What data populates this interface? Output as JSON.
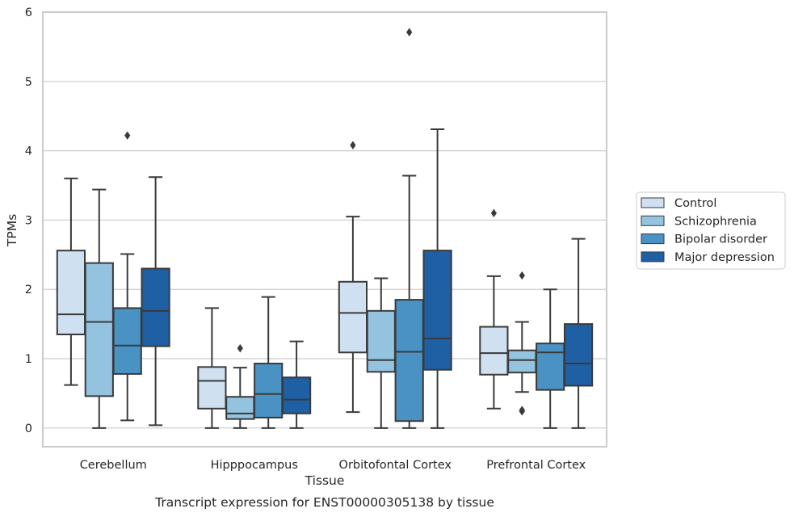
{
  "chart_data": {
    "type": "box",
    "xlabel": "Tissue",
    "ylabel": "TPMs",
    "caption": "Transcript expression for ENST00000305138 by tissue",
    "ylim": [
      -0.27,
      6.0
    ],
    "yticks": [
      0,
      1,
      2,
      3,
      4,
      5,
      6
    ],
    "grid": "horizontal",
    "legend_position": "right",
    "categories": [
      "Cerebellum",
      "Hipppocampus",
      "Orbitofontal Cortex",
      "Prefrontal Cortex"
    ],
    "series": [
      {
        "name": "Control",
        "color": "#cfe0f1",
        "boxes": [
          {
            "whislo": 0.62,
            "q1": 1.35,
            "median": 1.64,
            "q3": 2.56,
            "whishi": 3.6,
            "fliers": []
          },
          {
            "whislo": 0.0,
            "q1": 0.28,
            "median": 0.68,
            "q3": 0.88,
            "whishi": 1.73,
            "fliers": []
          },
          {
            "whislo": 0.23,
            "q1": 1.09,
            "median": 1.66,
            "q3": 2.11,
            "whishi": 3.05,
            "fliers": [
              4.08
            ]
          },
          {
            "whislo": 0.28,
            "q1": 0.77,
            "median": 1.08,
            "q3": 1.46,
            "whishi": 2.19,
            "fliers": [
              3.1
            ]
          }
        ]
      },
      {
        "name": "Schizophrenia",
        "color": "#93c3df",
        "boxes": [
          {
            "whislo": 0.0,
            "q1": 0.46,
            "median": 1.53,
            "q3": 2.38,
            "whishi": 3.44,
            "fliers": []
          },
          {
            "whislo": 0.0,
            "q1": 0.13,
            "median": 0.21,
            "q3": 0.45,
            "whishi": 0.87,
            "fliers": [
              1.15
            ]
          },
          {
            "whislo": 0.0,
            "q1": 0.81,
            "median": 0.98,
            "q3": 1.69,
            "whishi": 2.16,
            "fliers": []
          },
          {
            "whislo": 0.52,
            "q1": 0.8,
            "median": 0.98,
            "q3": 1.12,
            "whishi": 1.53,
            "fliers": [
              0.26,
              0.24,
              2.2
            ]
          }
        ]
      },
      {
        "name": "Bipolar disorder",
        "color": "#4a92c4",
        "boxes": [
          {
            "whislo": 0.11,
            "q1": 0.78,
            "median": 1.19,
            "q3": 1.73,
            "whishi": 2.51,
            "fliers": [
              4.22
            ]
          },
          {
            "whislo": 0.0,
            "q1": 0.15,
            "median": 0.49,
            "q3": 0.93,
            "whishi": 1.89,
            "fliers": []
          },
          {
            "whislo": 0.0,
            "q1": 0.1,
            "median": 1.1,
            "q3": 1.85,
            "whishi": 3.64,
            "fliers": [
              5.71
            ]
          },
          {
            "whislo": 0.0,
            "q1": 0.55,
            "median": 1.09,
            "q3": 1.22,
            "whishi": 2.0,
            "fliers": []
          }
        ]
      },
      {
        "name": "Major depression",
        "color": "#1f5fa3",
        "boxes": [
          {
            "whislo": 0.04,
            "q1": 1.18,
            "median": 1.69,
            "q3": 2.3,
            "whishi": 3.62,
            "fliers": []
          },
          {
            "whislo": 0.0,
            "q1": 0.21,
            "median": 0.41,
            "q3": 0.73,
            "whishi": 1.25,
            "fliers": []
          },
          {
            "whislo": 0.0,
            "q1": 0.84,
            "median": 1.29,
            "q3": 2.56,
            "whishi": 4.31,
            "fliers": []
          },
          {
            "whislo": 0.0,
            "q1": 0.61,
            "median": 0.93,
            "q3": 1.5,
            "whishi": 2.73,
            "fliers": []
          }
        ]
      }
    ]
  }
}
